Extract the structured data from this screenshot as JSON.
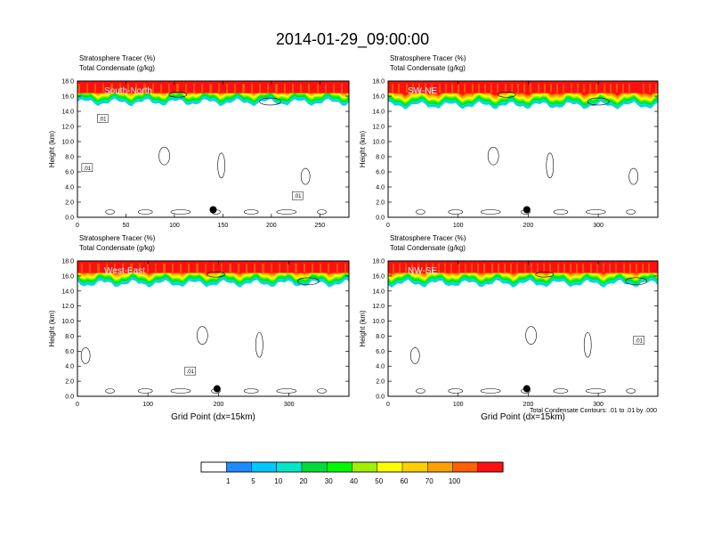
{
  "main_title": "2014-01-29_09:00:00",
  "footnote": "Total Condensate Contours: .01 to .01 by .000",
  "colorbar": {
    "labels": [
      "1",
      "5",
      "10",
      "20",
      "30",
      "40",
      "50",
      "60",
      "70",
      "100"
    ],
    "colors": [
      "#ffffff",
      "#1e8cff",
      "#00c8ff",
      "#00e6c8",
      "#00dc3c",
      "#00fa00",
      "#a0f000",
      "#ffff00",
      "#ffd000",
      "#ffa000",
      "#ff6000",
      "#ff1010"
    ]
  },
  "chart_data": [
    {
      "type": "heatmap",
      "panel_label": "South-North",
      "title_line1": "Stratosphere Tracer   (%)",
      "title_line2": "Total Condensate   (g/kg)",
      "ylabel": "Height (km)",
      "xlabel": "",
      "xlim": [
        0,
        280
      ],
      "ylim": [
        0,
        18
      ],
      "xticks": [
        "0",
        "50",
        "100",
        "150",
        "200",
        "250"
      ],
      "yticks": [
        "0.0",
        "2.0",
        "4.0",
        "6.0",
        "8.0",
        "10.0",
        "12.0",
        "14.0",
        "16.0",
        "18.0"
      ],
      "tropopause_km": 15.2,
      "marker": {
        "x": 140,
        "y": 1.0
      },
      "contour_labels": [
        {
          "text": ".01",
          "x": 26,
          "y": 13.0
        },
        {
          "text": ".01",
          "x": 10,
          "y": 6.5
        },
        {
          "text": ".01",
          "x": 227,
          "y": 2.8
        }
      ]
    },
    {
      "type": "heatmap",
      "panel_label": "SW-NE",
      "title_line1": "Stratosphere Tracer   (%)",
      "title_line2": "Total Condensate   (g/kg)",
      "ylabel": "Height (km)",
      "xlabel": "",
      "xlim": [
        0,
        385
      ],
      "ylim": [
        0,
        18
      ],
      "xticks": [
        "0",
        "100",
        "200",
        "300"
      ],
      "yticks": [
        "0.0",
        "2.0",
        "4.0",
        "6.0",
        "8.0",
        "10.0",
        "12.0",
        "14.0",
        "16.0",
        "18.0"
      ],
      "tropopause_km": 14.8,
      "marker": {
        "x": 198,
        "y": 1.0
      },
      "contour_labels": []
    },
    {
      "type": "heatmap",
      "panel_label": "West-East",
      "title_line1": "Stratosphere Tracer   (%)",
      "title_line2": "Total Condensate   (g/kg)",
      "ylabel": "Height (km)",
      "xlabel": "Grid Point (dx=15km)",
      "xlim": [
        0,
        385
      ],
      "ylim": [
        0,
        18
      ],
      "xticks": [
        "0",
        "100",
        "200",
        "300"
      ],
      "yticks": [
        "0.0",
        "2.0",
        "4.0",
        "6.0",
        "8.0",
        "10.0",
        "12.0",
        "14.0",
        "16.0",
        "18.0"
      ],
      "tropopause_km": 15.0,
      "marker": {
        "x": 198,
        "y": 1.0
      },
      "contour_labels": [
        {
          "text": ".01",
          "x": 160,
          "y": 3.3
        }
      ]
    },
    {
      "type": "heatmap",
      "panel_label": "NW-SE",
      "title_line1": "Stratosphere Tracer   (%)",
      "title_line2": "Total Condensate   (g/kg)",
      "ylabel": "Height (km)",
      "xlabel": "Grid Point (dx=15km)",
      "xlim": [
        0,
        385
      ],
      "ylim": [
        0,
        18
      ],
      "xticks": [
        "0",
        "100",
        "200",
        "300"
      ],
      "yticks": [
        "0.0",
        "2.0",
        "4.0",
        "6.0",
        "8.0",
        "10.0",
        "12.0",
        "14.0",
        "16.0",
        "18.0"
      ],
      "tropopause_km": 15.0,
      "marker": {
        "x": 198,
        "y": 1.0
      },
      "contour_labels": [
        {
          "text": ".01",
          "x": 358,
          "y": 7.4
        }
      ]
    }
  ]
}
